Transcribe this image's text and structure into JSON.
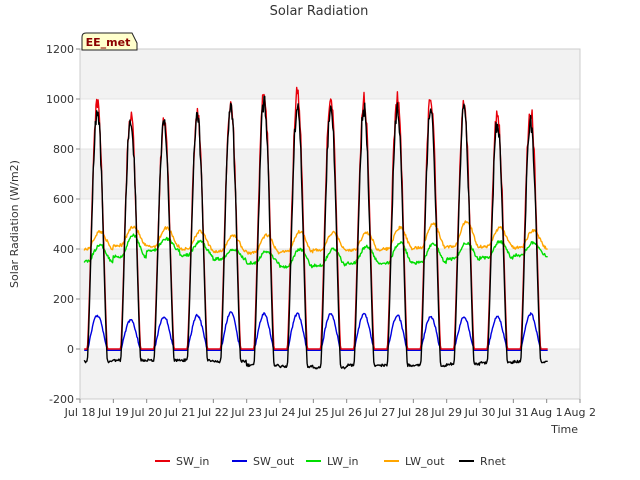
{
  "chart_data": {
    "type": "line",
    "title": "Solar Radiation",
    "badge": "EE_met",
    "xlabel": "Time",
    "ylabel": "Solar Radiation (W/m2)",
    "ylim": [
      -200,
      1200
    ],
    "yticks": [
      -200,
      0,
      200,
      400,
      600,
      800,
      1000,
      1200
    ],
    "xlim_days": [
      "2024-07-18",
      "2024-08-02"
    ],
    "xtick_labels": [
      "Jul 18",
      "Jul 19",
      "Jul 20",
      "Jul 21",
      "Jul 22",
      "Jul 23",
      "Jul 24",
      "Jul 25",
      "Jul 26",
      "Jul 27",
      "Jul 28",
      "Jul 29",
      "Jul 30",
      "Jul 31",
      "Aug 1",
      "Aug 2"
    ],
    "grid_bands": true,
    "legend_position": "bottom",
    "series": [
      {
        "name": "SW_in",
        "color": "#e8000b",
        "daily_peak": [
          980,
          940,
          915,
          940,
          990,
          1035,
          1025,
          1020,
          1000,
          1005,
          1005,
          980,
          945,
          960
        ]
      },
      {
        "name": "SW_out",
        "color": "#0000e0",
        "daily_peak": [
          135,
          115,
          130,
          135,
          145,
          140,
          140,
          140,
          140,
          135,
          130,
          128,
          130,
          140
        ]
      },
      {
        "name": "LW_in",
        "color": "#00dd00",
        "daily_base": [
          350,
          370,
          395,
          375,
          360,
          345,
          330,
          335,
          345,
          345,
          345,
          360,
          365,
          375
        ],
        "daily_peak": [
          415,
          455,
          440,
          430,
          400,
          390,
          400,
          400,
          410,
          425,
          420,
          425,
          430,
          425
        ]
      },
      {
        "name": "LW_out",
        "color": "#ffa500",
        "daily_base": [
          400,
          415,
          410,
          400,
          390,
          385,
          390,
          395,
          395,
          400,
          405,
          410,
          410,
          405
        ],
        "daily_peak": [
          470,
          490,
          485,
          470,
          455,
          455,
          470,
          465,
          465,
          485,
          500,
          510,
          485,
          475
        ]
      },
      {
        "name": "Rnet",
        "color": "#000000",
        "daily_peak": [
          960,
          930,
          910,
          935,
          960,
          990,
          975,
          970,
          965,
          965,
          965,
          955,
          905,
          900
        ],
        "night": [
          -50,
          -45,
          -45,
          -45,
          -50,
          -65,
          -70,
          -75,
          -65,
          -65,
          -65,
          -60,
          -55,
          -50
        ]
      }
    ]
  }
}
